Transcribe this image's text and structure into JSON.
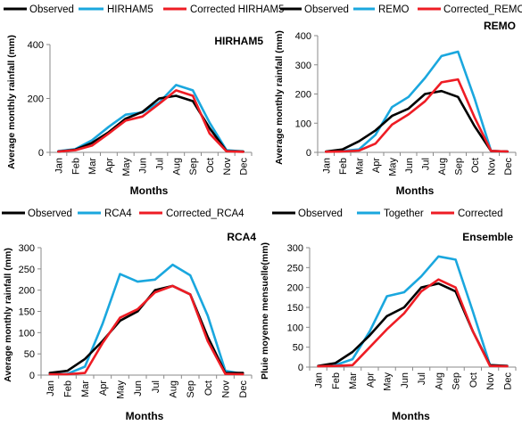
{
  "chart_data": [
    {
      "type": "line",
      "panel_label": "HIRHAM5",
      "xlabel": "Months",
      "ylabel": "Average monthly rainfall  (mm)",
      "categories": [
        "Jan",
        "Feb",
        "Mar",
        "Apr",
        "May",
        "Jun",
        "Jul",
        "Aug",
        "Sep",
        "Oct",
        "Nov",
        "Dec"
      ],
      "ylim": [
        0,
        400
      ],
      "yticks": [
        0,
        200,
        400
      ],
      "legend_position": "top",
      "series": [
        {
          "name": "Observed",
          "color": "#000000",
          "values": [
            3,
            10,
            35,
            75,
            125,
            150,
            200,
            210,
            190,
            90,
            5,
            3
          ]
        },
        {
          "name": "HIRHAM5",
          "color": "#1aa7de",
          "values": [
            5,
            12,
            45,
            95,
            140,
            148,
            185,
            250,
            230,
            110,
            8,
            3
          ]
        },
        {
          "name": "Corrected HIRHAM5",
          "color": "#ee1c24",
          "values": [
            3,
            8,
            25,
            70,
            118,
            133,
            180,
            230,
            210,
            70,
            4,
            2
          ]
        }
      ]
    },
    {
      "type": "line",
      "panel_label": "REMO",
      "xlabel": "Months",
      "ylabel": "Average monthly rainfall  (mm)",
      "categories": [
        "Jan",
        "Feb",
        "Mar",
        "Apr",
        "May",
        "Jun",
        "Jul",
        "Aug",
        "Sep",
        "Oct",
        "Nov",
        "Dec"
      ],
      "ylim": [
        0,
        400
      ],
      "yticks": [
        0,
        100,
        200,
        300,
        400
      ],
      "legend_position": "top",
      "series": [
        {
          "name": "Observed",
          "color": "#000000",
          "values": [
            3,
            10,
            38,
            75,
            125,
            150,
            200,
            210,
            190,
            90,
            5,
            3
          ]
        },
        {
          "name": "REMO",
          "color": "#1aa7de",
          "values": [
            2,
            5,
            10,
            60,
            155,
            190,
            255,
            330,
            345,
            185,
            5,
            3
          ]
        },
        {
          "name": "Corrected_REMO",
          "color": "#ee1c24",
          "values": [
            2,
            3,
            6,
            30,
            95,
            130,
            175,
            240,
            250,
            120,
            5,
            3
          ]
        }
      ]
    },
    {
      "type": "line",
      "panel_label": "RCA4",
      "xlabel": "Months",
      "ylabel": "Average monthly rainfall  (mm)",
      "categories": [
        "Jan",
        "Feb",
        "Mar",
        "Apr",
        "May",
        "Jun",
        "Jul",
        "Aug",
        "Sep",
        "Oct",
        "Nov",
        "Dec"
      ],
      "ylim": [
        0,
        300
      ],
      "yticks": [
        0,
        50,
        100,
        150,
        200,
        250,
        300
      ],
      "legend_position": "top",
      "series": [
        {
          "name": "Observed",
          "color": "#000000",
          "values": [
            5,
            10,
            38,
            80,
            128,
            150,
            200,
            210,
            190,
            90,
            5,
            5
          ]
        },
        {
          "name": "RCA4",
          "color": "#1aa7de",
          "values": [
            2,
            3,
            20,
            120,
            238,
            220,
            225,
            260,
            235,
            140,
            10,
            3
          ]
        },
        {
          "name": "Corrected_RCA4",
          "color": "#ee1c24",
          "values": [
            2,
            2,
            5,
            75,
            135,
            155,
            195,
            210,
            190,
            80,
            3,
            2
          ]
        }
      ]
    },
    {
      "type": "line",
      "panel_label": "Ensemble",
      "xlabel": "Months",
      "ylabel": "Pluie moyenne mensuelle(mm)",
      "categories": [
        "Jan",
        "Feb",
        "Mar",
        "Apr",
        "May",
        "Jun",
        "Jul",
        "Aug",
        "Sep",
        "Oct",
        "Nov",
        "Dec"
      ],
      "ylim": [
        0,
        300
      ],
      "yticks": [
        0,
        50,
        100,
        150,
        200,
        250,
        300
      ],
      "legend_position": "top",
      "series": [
        {
          "name": "Observed",
          "color": "#000000",
          "values": [
            3,
            10,
            38,
            80,
            128,
            150,
            200,
            210,
            190,
            90,
            5,
            3
          ]
        },
        {
          "name": "Together",
          "color": "#1aa7de",
          "values": [
            3,
            5,
            20,
            90,
            178,
            188,
            228,
            278,
            270,
            140,
            5,
            3
          ]
        },
        {
          "name": "Corrected",
          "color": "#ee1c24",
          "values": [
            2,
            3,
            5,
            50,
            95,
            135,
            190,
            220,
            200,
            90,
            3,
            2
          ]
        }
      ]
    }
  ]
}
